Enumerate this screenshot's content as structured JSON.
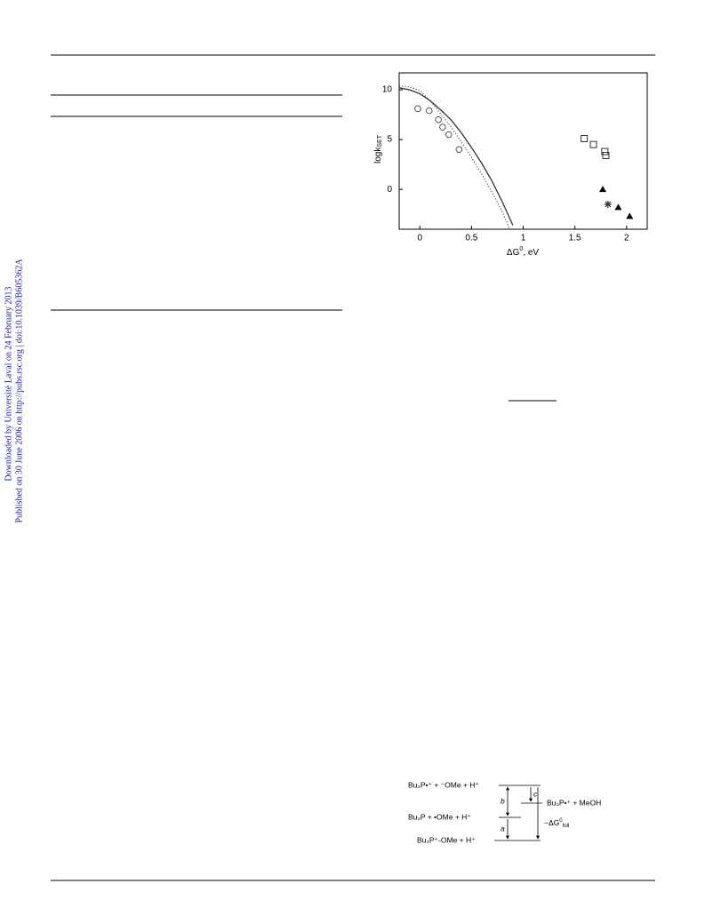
{
  "sidebar": {
    "downloaded": "Downloaded by Université Laval on 24 February 2013",
    "published": "Published on 30 June 2006 on http://pubs.rsc.org | doi:10.1039/B605362A"
  },
  "chart_data": {
    "type": "scatter",
    "ylabel": {
      "main": "logk",
      "sub": "SET"
    },
    "xlabel": {
      "main": "ΔG",
      "sup": "0",
      "rest": ", eV"
    },
    "xlim": [
      -0.2,
      2.2
    ],
    "ylim": [
      -4,
      11.7
    ],
    "xticks": [
      0,
      0.5,
      1,
      1.5,
      2
    ],
    "yticks": [
      0,
      5,
      10
    ],
    "series": [
      {
        "kind": "marker",
        "marker": "circle",
        "color": "#555555",
        "x": [
          -0.02,
          0.09,
          0.18,
          0.22,
          0.28,
          0.38
        ],
        "values": [
          8.1,
          7.9,
          7.0,
          6.25,
          5.5,
          4.0
        ]
      },
      {
        "kind": "marker",
        "marker": "square",
        "color": "#333333",
        "x": [
          1.59,
          1.68,
          1.79,
          1.8
        ],
        "values": [
          5.1,
          4.5,
          3.8,
          3.4
        ]
      },
      {
        "kind": "marker",
        "marker": "triangle",
        "color": "#000000",
        "x": [
          1.77,
          1.92,
          2.03
        ],
        "values": [
          0,
          -1.8,
          -2.7
        ]
      },
      {
        "kind": "marker",
        "marker": "star",
        "color": "#333333",
        "x": [
          1.82
        ],
        "values": [
          -1.5
        ]
      },
      {
        "kind": "line",
        "style": "solid",
        "color": "#333333",
        "x": [
          -0.2,
          -0.1,
          0,
          0.1,
          0.2,
          0.3,
          0.4,
          0.5,
          0.6,
          0.7,
          0.8,
          0.9
        ],
        "values": [
          10.2,
          10.0,
          9.6,
          8.9,
          8.0,
          7.0,
          5.7,
          4.2,
          2.6,
          0.8,
          -1.3,
          -3.6
        ]
      },
      {
        "kind": "line",
        "style": "dotted",
        "color": "#333333",
        "x": [
          -0.2,
          -0.1,
          0,
          0.1,
          0.2,
          0.3,
          0.4,
          0.5,
          0.6,
          0.7,
          0.8,
          0.87
        ],
        "values": [
          10.4,
          10.3,
          9.9,
          8.9,
          7.6,
          6.3,
          4.8,
          3.2,
          1.5,
          -0.3,
          -2.3,
          -4.0
        ]
      }
    ]
  },
  "scheme": {
    "top": "Bu₃P•⁺  +  ⁻OMe  +  H⁺",
    "middle": "Bu₃P   +  •OMe  +  H⁺",
    "bottom": "Bu₃P⁺-OMe   +   H⁺",
    "right": "Bu₃P•⁺  + MeOH",
    "a": "a",
    "b": "b",
    "c": "c",
    "dg": {
      "main": "−ΔG",
      "sup": "0",
      "sub": "foll"
    }
  }
}
